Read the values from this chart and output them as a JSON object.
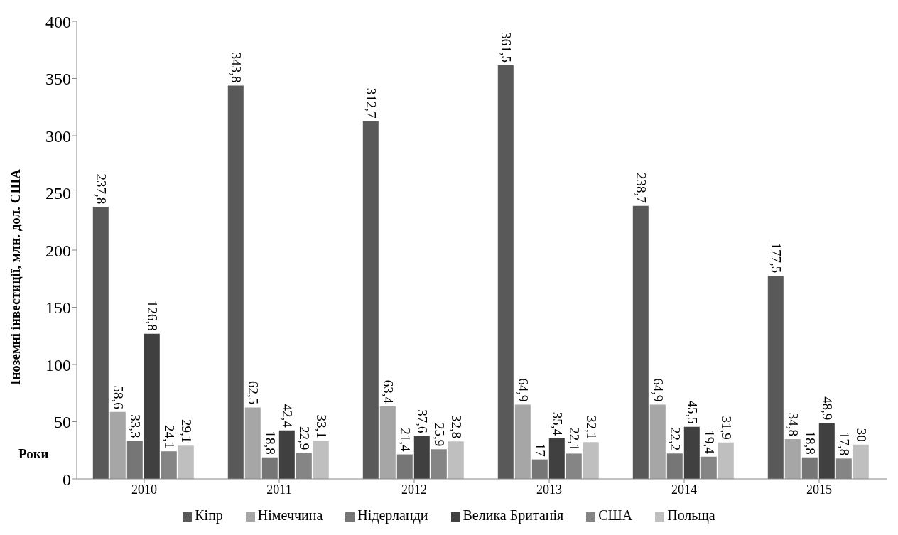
{
  "chart_data": {
    "type": "bar",
    "ylabel": "Іноземні інвестиції, млн. дол. США",
    "xlabel": "Роки",
    "categories": [
      "2010",
      "2011",
      "2012",
      "2013",
      "2014",
      "2015"
    ],
    "series": [
      {
        "name": "Кіпр",
        "color": "#595959",
        "values": [
          237.8,
          343.8,
          312.7,
          361.5,
          238.7,
          177.5
        ],
        "value_labels": [
          "237,8",
          "343,8",
          "312,7",
          "361,5",
          "238,7",
          "177,5"
        ]
      },
      {
        "name": "Німеччина",
        "color": "#a6a6a6",
        "values": [
          58.6,
          62.5,
          63.4,
          64.9,
          64.9,
          34.8
        ],
        "value_labels": [
          "58,6",
          "62,5",
          "63,4",
          "64,9",
          "64,9",
          "34,8"
        ]
      },
      {
        "name": "Нідерланди",
        "color": "#767676",
        "values": [
          33.3,
          18.8,
          21.4,
          17,
          22.2,
          18.8
        ],
        "value_labels": [
          "33,3",
          "18,8",
          "21,4",
          "17",
          "22,2",
          "18,8"
        ]
      },
      {
        "name": "Велика Британія",
        "color": "#404040",
        "values": [
          126.8,
          42.4,
          37.6,
          35.4,
          45.5,
          48.9
        ],
        "value_labels": [
          "126,8",
          "42,4",
          "37,6",
          "35,4",
          "45,5",
          "48,9"
        ]
      },
      {
        "name": "США",
        "color": "#858585",
        "values": [
          24.1,
          22.9,
          25.9,
          22.1,
          19.4,
          17.8
        ],
        "value_labels": [
          "24,1",
          "22,9",
          "25,9",
          "22,1",
          "19,4",
          "17,8"
        ]
      },
      {
        "name": "Польща",
        "color": "#bfbfbf",
        "values": [
          29.1,
          33.1,
          32.8,
          32.1,
          31.9,
          30
        ],
        "value_labels": [
          "29,1",
          "33,1",
          "32,8",
          "32,1",
          "31,9",
          "30"
        ]
      }
    ],
    "ylim": [
      0,
      400
    ],
    "yticks": [
      0,
      50,
      100,
      150,
      200,
      250,
      300,
      350,
      400
    ],
    "grid": false,
    "legend": "bottom"
  }
}
